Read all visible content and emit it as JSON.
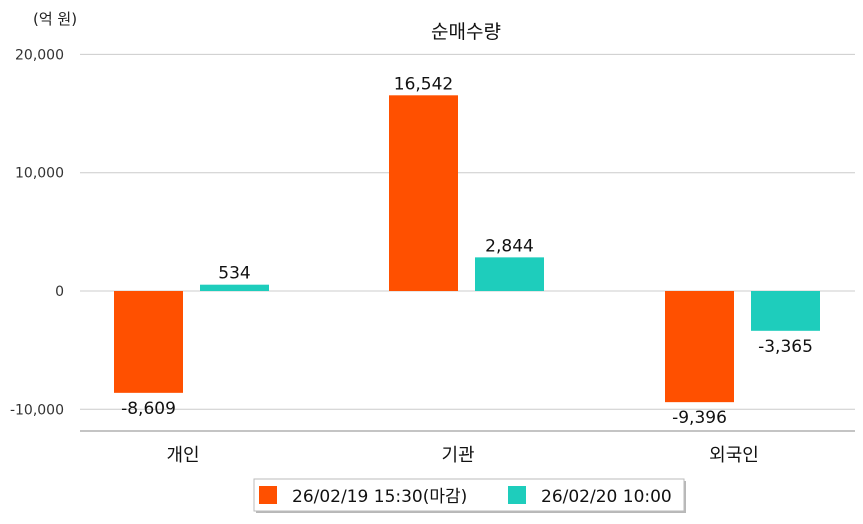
{
  "chart_data": {
    "type": "bar",
    "title": "순매수량",
    "unit_label": "(억 원)",
    "categories": [
      "개인",
      "기관",
      "외국인"
    ],
    "series": [
      {
        "name": "26/02/19 15:30(마감)",
        "color": "#ff5000",
        "values": [
          -8609,
          16542,
          -9396
        ],
        "labels": [
          "-8,609",
          "16,542",
          "-9,396"
        ]
      },
      {
        "name": "26/02/20 10:00",
        "color": "#1ecdbc",
        "values": [
          534,
          2844,
          -3365
        ],
        "labels": [
          "534",
          "2,844",
          "-3,365"
        ]
      }
    ],
    "yticks": [
      -10000,
      0,
      10000,
      20000
    ],
    "ytick_labels": [
      "-10,000",
      "0",
      "10,000",
      "20,000"
    ],
    "ylim": [
      -11700,
      21000
    ],
    "grid": true,
    "legend_position": "bottom-center"
  }
}
